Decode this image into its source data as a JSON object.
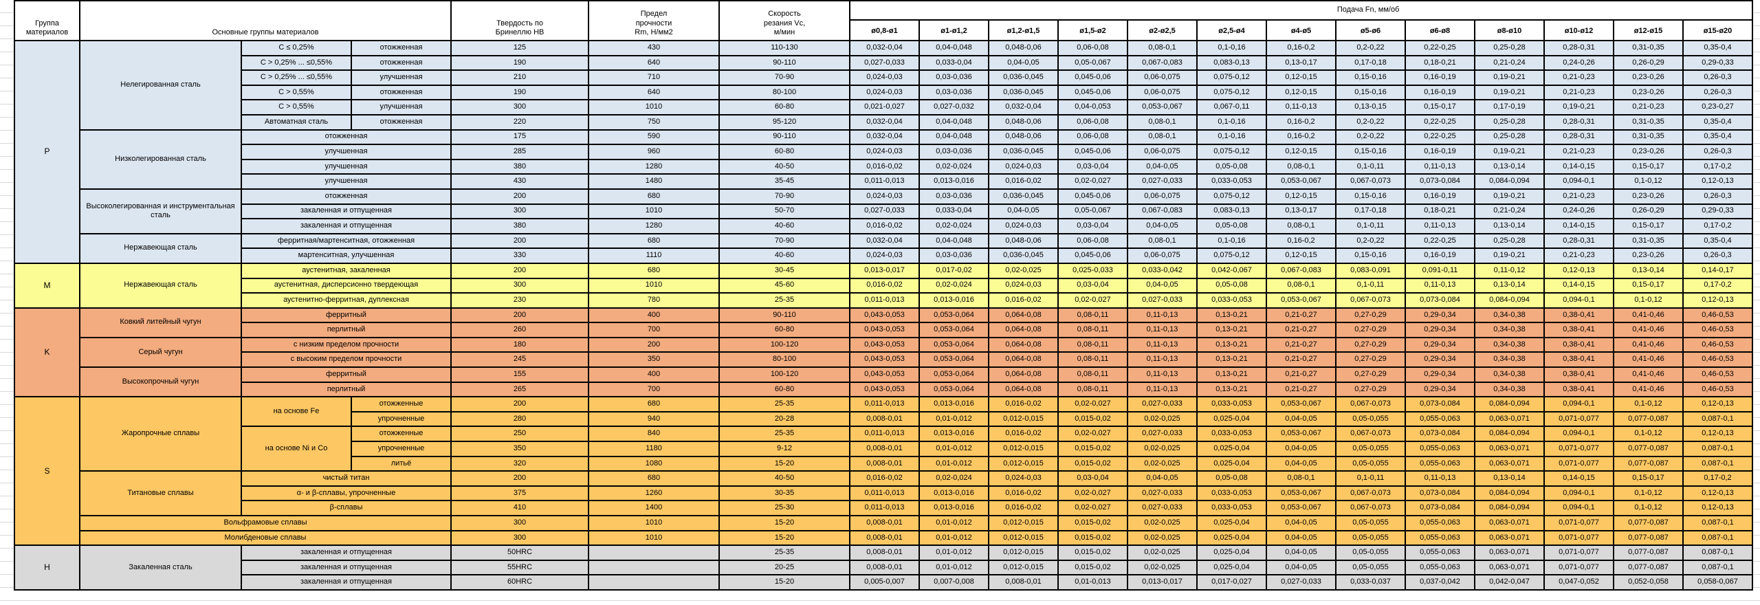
{
  "colors": {
    "P": "#dce6f1",
    "M": "#fcfc95",
    "K": "#f3ac7f",
    "S": "#fdc863",
    "H": "#d9d9d9",
    "header_bg": "#ffffff",
    "border": "#000000",
    "gridline": "#d8d8d8"
  },
  "header": {
    "group": "Группа\nматериалов",
    "materials": "Основные группы материалов",
    "hardness": "Твердость по\nБринеллю HB",
    "strength": "Предел\nпрочности\nRm, Н/мм2",
    "speed": "Скорость\nрезания Vc,\nм/мин",
    "feed_title": "Подача Fn, мм/об",
    "feed_columns": [
      "ø0,8-ø1",
      "ø1-ø1,2",
      "ø1,2-ø1,5",
      "ø1,5-ø2",
      "ø2-ø2,5",
      "ø2,5-ø4",
      "ø4-ø5",
      "ø5-ø6",
      "ø6-ø8",
      "ø8-ø10",
      "ø10-ø12",
      "ø12-ø15",
      "ø15-ø20"
    ]
  },
  "feed_sets": {
    "A": [
      "0,032-0,04",
      "0,04-0,048",
      "0,048-0,06",
      "0,06-0,08",
      "0,08-0,1",
      "0,1-0,16",
      "0,16-0,2",
      "0,2-0,22",
      "0,22-0,25",
      "0,25-0,28",
      "0,28-0,31",
      "0,31-0,35",
      "0,35-0,4"
    ],
    "B": [
      "0,027-0,033",
      "0,033-0,04",
      "0,04-0,05",
      "0,05-0,067",
      "0,067-0,083",
      "0,083-0,13",
      "0,13-0,17",
      "0,17-0,18",
      "0,18-0,21",
      "0,21-0,24",
      "0,24-0,26",
      "0,26-0,29",
      "0,29-0,33"
    ],
    "C": [
      "0,024-0,03",
      "0,03-0,036",
      "0,036-0,045",
      "0,045-0,06",
      "0,06-0,075",
      "0,075-0,12",
      "0,12-0,15",
      "0,15-0,16",
      "0,16-0,19",
      "0,19-0,21",
      "0,21-0,23",
      "0,23-0,26",
      "0,26-0,3"
    ],
    "D": [
      "0,021-0,027",
      "0,027-0,032",
      "0,032-0,04",
      "0,04-0,053",
      "0,053-0,067",
      "0,067-0,11",
      "0,11-0,13",
      "0,13-0,15",
      "0,15-0,17",
      "0,17-0,19",
      "0,19-0,21",
      "0,21-0,23",
      "0,23-0,27"
    ],
    "E": [
      "0,016-0,02",
      "0,02-0,024",
      "0,024-0,03",
      "0,03-0,04",
      "0,04-0,05",
      "0,05-0,08",
      "0,08-0,1",
      "0,1-0,11",
      "0,11-0,13",
      "0,13-0,14",
      "0,14-0,15",
      "0,15-0,17",
      "0,17-0,2"
    ],
    "F": [
      "0,011-0,013",
      "0,013-0,016",
      "0,016-0,02",
      "0,02-0,027",
      "0,027-0,033",
      "0,033-0,053",
      "0,053-0,067",
      "0,067-0,073",
      "0,073-0,084",
      "0,084-0,094",
      "0,094-0,1",
      "0,1-0,12",
      "0,12-0,13"
    ],
    "G": [
      "0,013-0,017",
      "0,017-0,02",
      "0,02-0,025",
      "0,025-0,033",
      "0,033-0,042",
      "0,042-0,067",
      "0,067-0,083",
      "0,083-0,091",
      "0,091-0,11",
      "0,11-0,12",
      "0,12-0,13",
      "0,13-0,14",
      "0,14-0,17"
    ],
    "K": [
      "0,043-0,053",
      "0,053-0,064",
      "0,064-0,08",
      "0,08-0,11",
      "0,11-0,13",
      "0,13-0,21",
      "0,21-0,27",
      "0,27-0,29",
      "0,29-0,34",
      "0,34-0,38",
      "0,38-0,41",
      "0,41-0,46",
      "0,46-0,53"
    ],
    "S2": [
      "0,008-0,01",
      "0,01-0,012",
      "0,012-0,015",
      "0,015-0,02",
      "0,02-0,025",
      "0,025-0,04",
      "0,04-0,05",
      "0,05-0,055",
      "0,055-0,063",
      "0,063-0,071",
      "0,071-0,077",
      "0,077-0,087",
      "0,087-0,1"
    ],
    "H60": [
      "0,005-0,007",
      "0,007-0,008",
      "0,008-0,01",
      "0,01-0,013",
      "0,013-0,017",
      "0,017-0,027",
      "0,027-0,033",
      "0,033-0,037",
      "0,037-0,042",
      "0,042-0,047",
      "0,047-0,052",
      "0,052-0,058",
      "0,058-0,067"
    ]
  },
  "groups": [
    {
      "code": "P",
      "rows": [
        {
          "labels": [
            {
              "k": "letter",
              "t": "P",
              "rs": 15
            },
            {
              "k": "fam",
              "t": "Нелегированная сталь",
              "rs": 6
            },
            {
              "k": "sub",
              "t": "C ≤ 0,25%"
            },
            {
              "k": "state",
              "t": "отожженная"
            }
          ],
          "hb": "125",
          "rm": "430",
          "vc": "110-130",
          "feeds": "A"
        },
        {
          "labels": [
            {
              "k": "sub",
              "t": "C > 0,25% ... ≤0,55%"
            },
            {
              "k": "state",
              "t": "отожженная"
            }
          ],
          "hb": "190",
          "rm": "640",
          "vc": "90-110",
          "feeds": "B"
        },
        {
          "labels": [
            {
              "k": "sub",
              "t": "C > 0,25% ... ≤0,55%"
            },
            {
              "k": "state",
              "t": "улучшенная"
            }
          ],
          "hb": "210",
          "rm": "710",
          "vc": "70-90",
          "feeds": "C"
        },
        {
          "labels": [
            {
              "k": "sub",
              "t": "C > 0,55%"
            },
            {
              "k": "state",
              "t": "отожженная"
            }
          ],
          "hb": "190",
          "rm": "640",
          "vc": "80-100",
          "feeds": "C"
        },
        {
          "labels": [
            {
              "k": "sub",
              "t": "C > 0,55%"
            },
            {
              "k": "state",
              "t": "улучшенная"
            }
          ],
          "hb": "300",
          "rm": "1010",
          "vc": "60-80",
          "feeds": "D"
        },
        {
          "labels": [
            {
              "k": "sub",
              "t": "Автоматная сталь"
            },
            {
              "k": "state",
              "t": "отожженная"
            }
          ],
          "hb": "220",
          "rm": "750",
          "vc": "95-120",
          "feeds": "A"
        },
        {
          "labels": [
            {
              "k": "fam",
              "t": "Низколегированная сталь",
              "rs": 4
            },
            {
              "k": "state",
              "t": "отожженная",
              "cs": 2
            }
          ],
          "hb": "175",
          "rm": "590",
          "vc": "90-110",
          "feeds": "A"
        },
        {
          "labels": [
            {
              "k": "state",
              "t": "улучшенная",
              "cs": 2
            }
          ],
          "hb": "285",
          "rm": "960",
          "vc": "60-80",
          "feeds": "C"
        },
        {
          "labels": [
            {
              "k": "state",
              "t": "улучшенная",
              "cs": 2
            }
          ],
          "hb": "380",
          "rm": "1280",
          "vc": "40-50",
          "feeds": "E"
        },
        {
          "labels": [
            {
              "k": "state",
              "t": "улучшенная",
              "cs": 2
            }
          ],
          "hb": "430",
          "rm": "1480",
          "vc": "35-45",
          "feeds": "F"
        },
        {
          "labels": [
            {
              "k": "fam",
              "t": "Высоколегированная и инструментальная сталь",
              "rs": 3
            },
            {
              "k": "state",
              "t": "отожженная",
              "cs": 2
            }
          ],
          "hb": "200",
          "rm": "680",
          "vc": "70-90",
          "feeds": "C"
        },
        {
          "labels": [
            {
              "k": "state",
              "t": "закаленная и отпущенная",
              "cs": 2
            }
          ],
          "hb": "300",
          "rm": "1010",
          "vc": "50-70",
          "feeds": "B"
        },
        {
          "labels": [
            {
              "k": "state",
              "t": "закаленная и отпущенная",
              "cs": 2
            }
          ],
          "hb": "380",
          "rm": "1280",
          "vc": "40-60",
          "feeds": "E"
        },
        {
          "labels": [
            {
              "k": "fam",
              "t": "Нержавеющая сталь",
              "rs": 2
            },
            {
              "k": "state",
              "t": "ферритная/мартенситная, отожженная",
              "cs": 2
            }
          ],
          "hb": "200",
          "rm": "680",
          "vc": "70-90",
          "feeds": "A"
        },
        {
          "labels": [
            {
              "k": "state",
              "t": "мартенситная, улучшенная",
              "cs": 2
            }
          ],
          "hb": "330",
          "rm": "1110",
          "vc": "40-60",
          "feeds": "C"
        }
      ]
    },
    {
      "code": "M",
      "rows": [
        {
          "labels": [
            {
              "k": "letter",
              "t": "M",
              "rs": 3
            },
            {
              "k": "fam",
              "t": "Нержавеющая сталь",
              "rs": 3
            },
            {
              "k": "state",
              "t": "аустенитная, закаленная",
              "cs": 2
            }
          ],
          "hb": "200",
          "rm": "680",
          "vc": "30-45",
          "feeds": "G"
        },
        {
          "labels": [
            {
              "k": "state",
              "t": "аустенитная, дисперсионно твердеющая",
              "cs": 2
            }
          ],
          "hb": "300",
          "rm": "1010",
          "vc": "45-60",
          "feeds": "E"
        },
        {
          "labels": [
            {
              "k": "state",
              "t": "аустенитно-ферритная, дуплексная",
              "cs": 2
            }
          ],
          "hb": "230",
          "rm": "780",
          "vc": "25-35",
          "feeds": "F"
        }
      ]
    },
    {
      "code": "K",
      "rows": [
        {
          "labels": [
            {
              "k": "letter",
              "t": "K",
              "rs": 6
            },
            {
              "k": "fam",
              "t": "Ковкий литейный чугун",
              "rs": 2
            },
            {
              "k": "state",
              "t": "ферритный",
              "cs": 2
            }
          ],
          "hb": "200",
          "rm": "400",
          "vc": "90-110",
          "feeds": "K"
        },
        {
          "labels": [
            {
              "k": "state",
              "t": "перлитный",
              "cs": 2
            }
          ],
          "hb": "260",
          "rm": "700",
          "vc": "60-80",
          "feeds": "K"
        },
        {
          "labels": [
            {
              "k": "fam",
              "t": "Серый чугун",
              "rs": 2
            },
            {
              "k": "state",
              "t": "с низким пределом прочности",
              "cs": 2
            }
          ],
          "hb": "180",
          "rm": "200",
          "vc": "100-120",
          "feeds": "K"
        },
        {
          "labels": [
            {
              "k": "state",
              "t": "с высоким пределом прочности",
              "cs": 2
            }
          ],
          "hb": "245",
          "rm": "350",
          "vc": "80-100",
          "feeds": "K"
        },
        {
          "labels": [
            {
              "k": "fam",
              "t": "Высокопрочный чугун",
              "rs": 2
            },
            {
              "k": "state",
              "t": "ферритный",
              "cs": 2
            }
          ],
          "hb": "155",
          "rm": "400",
          "vc": "100-120",
          "feeds": "K"
        },
        {
          "labels": [
            {
              "k": "state",
              "t": "перлитный",
              "cs": 2
            }
          ],
          "hb": "265",
          "rm": "700",
          "vc": "60-80",
          "feeds": "K"
        }
      ]
    },
    {
      "code": "S",
      "rows": [
        {
          "labels": [
            {
              "k": "letter",
              "t": "S",
              "rs": 10
            },
            {
              "k": "fam",
              "t": "Жаропрочные сплавы",
              "rs": 5
            },
            {
              "k": "sub",
              "t": "на основе Fe",
              "rs": 2
            },
            {
              "k": "state",
              "t": "отожженные"
            }
          ],
          "hb": "200",
          "rm": "680",
          "vc": "25-35",
          "feeds": "F"
        },
        {
          "labels": [
            {
              "k": "state",
              "t": "упрочненные"
            }
          ],
          "hb": "280",
          "rm": "940",
          "vc": "20-28",
          "feeds": "S2"
        },
        {
          "labels": [
            {
              "k": "sub",
              "t": "на основе Ni и Co",
              "rs": 3
            },
            {
              "k": "state",
              "t": "отожженные"
            }
          ],
          "hb": "250",
          "rm": "840",
          "vc": "25-35",
          "feeds": "F"
        },
        {
          "labels": [
            {
              "k": "state",
              "t": "упрочненные"
            }
          ],
          "hb": "350",
          "rm": "1180",
          "vc": "9-12",
          "feeds": "S2"
        },
        {
          "labels": [
            {
              "k": "state",
              "t": "литьё"
            }
          ],
          "hb": "320",
          "rm": "1080",
          "vc": "15-20",
          "feeds": "S2"
        },
        {
          "labels": [
            {
              "k": "fam",
              "t": "Титановые сплавы",
              "rs": 3
            },
            {
              "k": "state",
              "t": "чистый титан",
              "cs": 2
            }
          ],
          "hb": "200",
          "rm": "680",
          "vc": "40-50",
          "feeds": "E"
        },
        {
          "labels": [
            {
              "k": "state",
              "t": "α- и β-сплавы, упрочненные",
              "cs": 2
            }
          ],
          "hb": "375",
          "rm": "1260",
          "vc": "30-35",
          "feeds": "F"
        },
        {
          "labels": [
            {
              "k": "state",
              "t": "β-сплавы",
              "cs": 2
            }
          ],
          "hb": "410",
          "rm": "1400",
          "vc": "25-30",
          "feeds": "F"
        },
        {
          "labels": [
            {
              "k": "fam",
              "t": "Вольфрамовые сплавы",
              "cs": 3
            }
          ],
          "hb": "300",
          "rm": "1010",
          "vc": "15-20",
          "feeds": "S2"
        },
        {
          "labels": [
            {
              "k": "fam",
              "t": "Молибденовые сплавы",
              "cs": 3
            }
          ],
          "hb": "300",
          "rm": "1010",
          "vc": "15-20",
          "feeds": "S2"
        }
      ]
    },
    {
      "code": "H",
      "rows": [
        {
          "labels": [
            {
              "k": "letter",
              "t": "H",
              "rs": 3
            },
            {
              "k": "fam",
              "t": "Закаленная сталь",
              "rs": 3
            },
            {
              "k": "state",
              "t": "закаленная и отпущенная",
              "cs": 2
            }
          ],
          "hb": "50HRC",
          "rm": "",
          "vc": "25-35",
          "feeds": "S2"
        },
        {
          "labels": [
            {
              "k": "state",
              "t": "закаленная и отпущенная",
              "cs": 2
            }
          ],
          "hb": "55HRC",
          "rm": "",
          "vc": "20-25",
          "feeds": "S2"
        },
        {
          "labels": [
            {
              "k": "state",
              "t": "закаленная и отпущенная",
              "cs": 2
            }
          ],
          "hb": "60HRC",
          "rm": "",
          "vc": "15-20",
          "feeds": "H60"
        }
      ]
    }
  ]
}
